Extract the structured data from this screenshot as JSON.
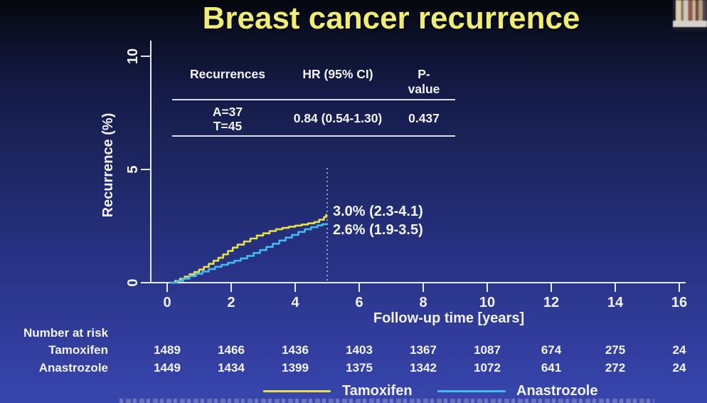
{
  "title": "Breast cancer recurrence",
  "stats_table": {
    "headers": [
      "Recurrences",
      "HR (95% CI)",
      "P-\nvalue"
    ],
    "row": {
      "recurrences": "A=37\nT=45",
      "hr": "0.84 (0.54-1.30)",
      "p_value": "0.437"
    }
  },
  "chart_data": {
    "type": "line",
    "subtype": "kaplan-meier-step",
    "title": "Breast cancer recurrence",
    "xlabel": "Follow-up time [years]",
    "ylabel": "Recurrence (%)",
    "xlim": [
      0,
      16
    ],
    "ylim": [
      0,
      10
    ],
    "xticks": [
      0,
      2,
      4,
      6,
      8,
      10,
      12,
      14,
      16
    ],
    "yticks": [
      0,
      5,
      10
    ],
    "grid": false,
    "reference_line_x": 5,
    "annotations": [
      "3.0% (2.3-4.1)",
      "2.6% (1.9-3.5)"
    ],
    "series": [
      {
        "name": "Tamoxifen",
        "color": "#e3df4e",
        "final_estimate": "3.0% (2.3-4.1)",
        "points": [
          [
            0.1,
            0
          ],
          [
            0.25,
            0.08
          ],
          [
            0.4,
            0.17
          ],
          [
            0.55,
            0.27
          ],
          [
            0.7,
            0.37
          ],
          [
            0.85,
            0.47
          ],
          [
            1.0,
            0.58
          ],
          [
            1.15,
            0.7
          ],
          [
            1.3,
            0.83
          ],
          [
            1.45,
            0.97
          ],
          [
            1.6,
            1.1
          ],
          [
            1.75,
            1.25
          ],
          [
            1.9,
            1.4
          ],
          [
            2.05,
            1.55
          ],
          [
            2.2,
            1.68
          ],
          [
            2.4,
            1.82
          ],
          [
            2.6,
            1.95
          ],
          [
            2.8,
            2.08
          ],
          [
            3.0,
            2.18
          ],
          [
            3.2,
            2.28
          ],
          [
            3.4,
            2.36
          ],
          [
            3.6,
            2.42
          ],
          [
            3.8,
            2.47
          ],
          [
            4.0,
            2.52
          ],
          [
            4.2,
            2.57
          ],
          [
            4.4,
            2.62
          ],
          [
            4.6,
            2.68
          ],
          [
            4.75,
            2.78
          ],
          [
            4.9,
            2.9
          ],
          [
            4.97,
            3.0
          ]
        ]
      },
      {
        "name": "Anastrozole",
        "color": "#45b8f0",
        "final_estimate": "2.6% (1.9-3.5)",
        "points": [
          [
            0.1,
            0
          ],
          [
            0.3,
            0.08
          ],
          [
            0.5,
            0.18
          ],
          [
            0.7,
            0.29
          ],
          [
            0.9,
            0.39
          ],
          [
            1.1,
            0.49
          ],
          [
            1.3,
            0.6
          ],
          [
            1.5,
            0.7
          ],
          [
            1.7,
            0.79
          ],
          [
            1.9,
            0.88
          ],
          [
            2.1,
            0.97
          ],
          [
            2.3,
            1.07
          ],
          [
            2.5,
            1.18
          ],
          [
            2.7,
            1.31
          ],
          [
            2.9,
            1.44
          ],
          [
            3.1,
            1.58
          ],
          [
            3.3,
            1.72
          ],
          [
            3.5,
            1.86
          ],
          [
            3.7,
            1.99
          ],
          [
            3.9,
            2.11
          ],
          [
            4.1,
            2.24
          ],
          [
            4.3,
            2.36
          ],
          [
            4.5,
            2.45
          ],
          [
            4.7,
            2.53
          ],
          [
            4.85,
            2.58
          ],
          [
            5.0,
            2.6
          ]
        ]
      }
    ]
  },
  "risk_table": {
    "label": "Number at risk",
    "years": [
      0,
      2,
      4,
      6,
      8,
      10,
      12,
      14,
      16
    ],
    "rows": [
      {
        "name": "Tamoxifen",
        "counts": [
          1489,
          1466,
          1436,
          1403,
          1367,
          1087,
          674,
          275,
          24
        ]
      },
      {
        "name": "Anastrozole",
        "counts": [
          1449,
          1434,
          1399,
          1375,
          1342,
          1072,
          641,
          272,
          24
        ]
      }
    ]
  },
  "legend": [
    {
      "label": "Tamoxifen",
      "color": "#e3df4e"
    },
    {
      "label": "Anastrozole",
      "color": "#45b8f0"
    }
  ],
  "media": {
    "webcam_thumbnail": "presenter-webcam-bookshelf-still"
  },
  "colors": {
    "title": "#f0ec75",
    "text": "#f4f4f8",
    "axis": "#e9e9f0",
    "background_top": "#05070f",
    "background_bottom": "#3845ac"
  }
}
